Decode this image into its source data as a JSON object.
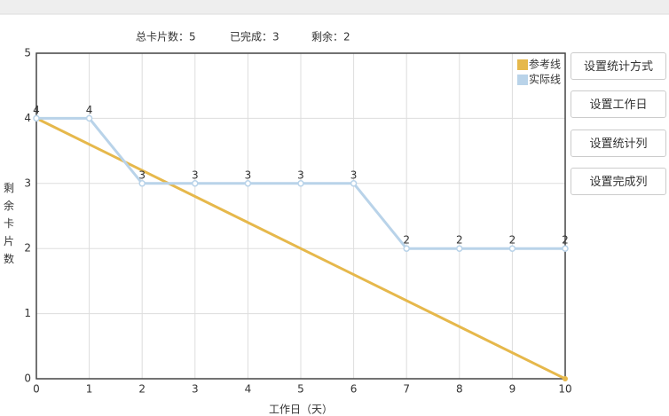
{
  "chart_data": {
    "type": "line",
    "summary": [
      "总卡片数：5",
      "已完成：3",
      "剩余：2"
    ],
    "x_label": "工作日（天）",
    "y_label": "剩余卡片数",
    "series": [
      {
        "name": "参考线",
        "color": "#e6b84b",
        "x": [
          0,
          10
        ],
        "values": [
          4,
          0
        ],
        "labels": false
      },
      {
        "name": "实际线",
        "color": "#b9d3e9",
        "x": [
          0,
          1,
          2,
          3,
          4,
          5,
          6,
          7,
          8,
          9,
          10
        ],
        "values": [
          4,
          4,
          3,
          3,
          3,
          3,
          3,
          2,
          2,
          2,
          2
        ],
        "labels": true
      }
    ],
    "xlim": [
      0,
      10
    ],
    "xticks": [
      0,
      1,
      2,
      3,
      4,
      5,
      6,
      7,
      8,
      9,
      10
    ],
    "ylim": [
      0,
      5
    ],
    "yticks": [
      0,
      1,
      2,
      3,
      4,
      5
    ],
    "grid": true,
    "legend": "top-right"
  },
  "buttons": [
    "设置统计方式",
    "设置工作日",
    "设置统计列",
    "设置完成列"
  ]
}
